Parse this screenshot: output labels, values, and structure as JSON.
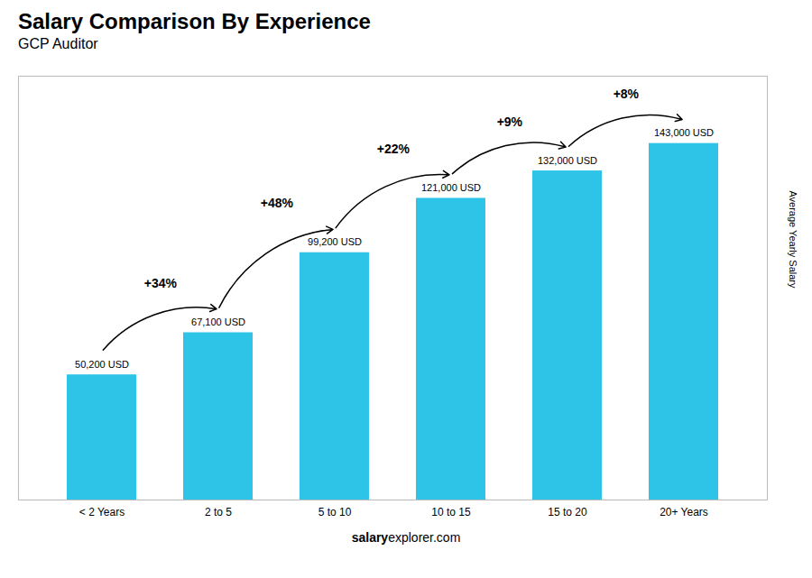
{
  "chart_data": {
    "type": "bar",
    "title": "Salary Comparison By Experience",
    "subtitle": "GCP Auditor",
    "categories": [
      "< 2 Years",
      "2 to 5",
      "5 to 10",
      "10 to 15",
      "15 to 20",
      "20+ Years"
    ],
    "values": [
      50200,
      67100,
      99200,
      121000,
      132000,
      143000
    ],
    "value_labels": [
      "50,200 USD",
      "67,100 USD",
      "99,200 USD",
      "121,000 USD",
      "132,000 USD",
      "143,000 USD"
    ],
    "data_labels": true,
    "color": "#2ec4e8",
    "ylim": [
      0,
      170000
    ],
    "yticks": [],
    "tick_labels": "x",
    "grid": false,
    "ylabel": "Average Yearly Salary",
    "annotations": [
      "+34%",
      "+48%",
      "+22%",
      "+9%",
      "+8%"
    ],
    "footer": [
      "salary",
      "explorer.com"
    ]
  }
}
